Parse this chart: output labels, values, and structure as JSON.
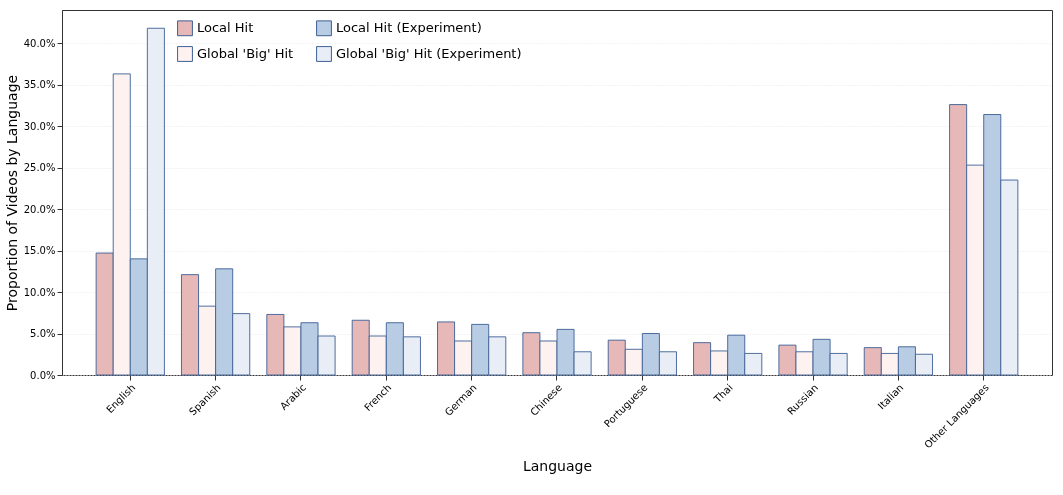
{
  "chart_data": {
    "type": "bar",
    "xlabel": "Language",
    "ylabel": "Proportion of Videos by Language",
    "categories": [
      "English",
      "Spanish",
      "Arabic",
      "French",
      "German",
      "Chinese",
      "Portuguese",
      "Thai",
      "Russian",
      "Italian",
      "Other Languages"
    ],
    "series": [
      {
        "name": "Local Hit",
        "color": "#e6b8b7",
        "values": [
          14.7,
          12.1,
          7.3,
          6.6,
          6.4,
          5.1,
          4.2,
          3.9,
          3.6,
          3.3,
          32.6
        ]
      },
      {
        "name": "Global 'Big' Hit",
        "color": "#fdf2f0",
        "values": [
          36.3,
          8.3,
          5.8,
          4.7,
          4.1,
          4.1,
          3.1,
          2.9,
          2.8,
          2.6,
          25.3
        ]
      },
      {
        "name": "Local Hit (Experiment)",
        "color": "#b8cce4",
        "values": [
          14.0,
          12.8,
          6.3,
          6.3,
          6.1,
          5.5,
          5.0,
          4.8,
          4.3,
          3.4,
          31.4
        ]
      },
      {
        "name": "Global 'Big' Hit (Experiment)",
        "color": "#e9eef6",
        "values": [
          41.8,
          7.4,
          4.7,
          4.6,
          4.6,
          2.8,
          2.8,
          2.6,
          2.6,
          2.5,
          23.5
        ]
      }
    ],
    "ylim": [
      0,
      44
    ],
    "yticks": [
      {
        "value": 0,
        "label": "0.0%"
      },
      {
        "value": 5,
        "label": "5.0%"
      },
      {
        "value": 10,
        "label": "10.0%"
      },
      {
        "value": 15,
        "label": "15.0%"
      },
      {
        "value": 20,
        "label": "20.0%"
      },
      {
        "value": 25,
        "label": "25.0%"
      },
      {
        "value": 30,
        "label": "30.0%"
      },
      {
        "value": 35,
        "label": "35.0%"
      },
      {
        "value": 40,
        "label": "40.0%"
      }
    ],
    "grid": "y",
    "legend": "top left"
  }
}
